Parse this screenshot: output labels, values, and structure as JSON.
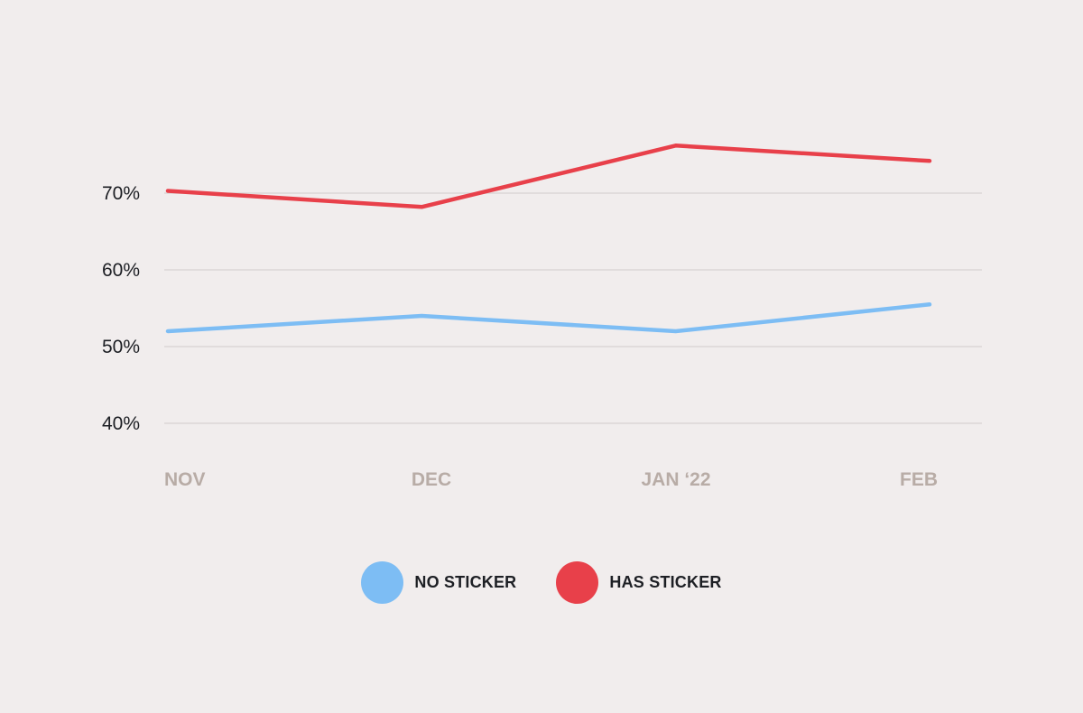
{
  "chart_data": {
    "type": "line",
    "categories": [
      "NOV",
      "DEC",
      "JAN ‘22",
      "FEB"
    ],
    "series": [
      {
        "name": "NO STICKER",
        "color": "#7dbdf4",
        "values": [
          52,
          54,
          52,
          55.5
        ]
      },
      {
        "name": "HAS STICKER",
        "color": "#e8404a",
        "values": [
          70.3,
          68.2,
          76.2,
          74.2
        ]
      }
    ],
    "y_ticks": [
      {
        "value": 40,
        "label": "40%"
      },
      {
        "value": 50,
        "label": "50%"
      },
      {
        "value": 60,
        "label": "60%"
      },
      {
        "value": 70,
        "label": "70%"
      }
    ],
    "ylim": [
      40,
      70
    ],
    "grid": true,
    "legend_position": "bottom-center"
  }
}
